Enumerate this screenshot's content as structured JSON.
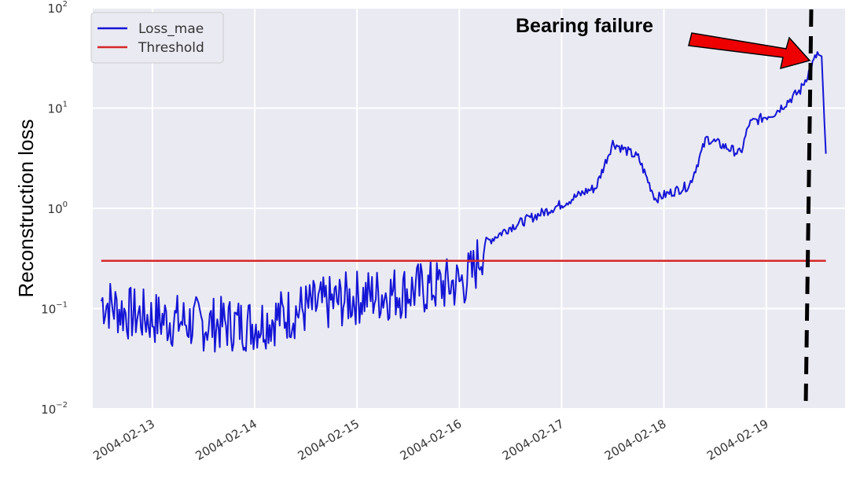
{
  "chart_data": {
    "type": "line",
    "title": "",
    "xlabel": "",
    "ylabel": "Reconstruction loss",
    "yscale": "log",
    "ylim": [
      0.01,
      100
    ],
    "xlim": [
      "2004-02-12 10:00",
      "2004-02-19 18:30"
    ],
    "y_tick_labels": [
      {
        "base": "10",
        "exp": "−2",
        "value": 0.01
      },
      {
        "base": "10",
        "exp": "−1",
        "value": 0.1
      },
      {
        "base": "10",
        "exp": "0",
        "value": 1
      },
      {
        "base": "10",
        "exp": "1",
        "value": 10
      },
      {
        "base": "10",
        "exp": "2",
        "value": 100
      }
    ],
    "x_tick_labels": [
      "2004-02-13",
      "2004-02-14",
      "2004-02-15",
      "2004-02-16",
      "2004-02-17",
      "2004-02-18",
      "2004-02-19"
    ],
    "grid": true,
    "legend_position": "top-left",
    "series": [
      {
        "name": "Loss_mae",
        "color": "#1515d6",
        "x": [
          "2004-02-12 12:00",
          "2004-02-12 18:00",
          "2004-02-13 00:00",
          "2004-02-13 12:00",
          "2004-02-14 00:00",
          "2004-02-14 12:00",
          "2004-02-15 00:00",
          "2004-02-15 12:00",
          "2004-02-16 00:00",
          "2004-02-16 03:00",
          "2004-02-16 06:00",
          "2004-02-16 12:00",
          "2004-02-17 00:00",
          "2004-02-17 06:00",
          "2004-02-17 08:00",
          "2004-02-17 12:00",
          "2004-02-17 18:00",
          "2004-02-17 22:00",
          "2004-02-18 06:00",
          "2004-02-18 10:00",
          "2004-02-18 18:00",
          "2004-02-18 20:00",
          "2004-02-19 02:00",
          "2004-02-19 08:00",
          "2004-02-19 12:00",
          "2004-02-19 13:00",
          "2004-02-19 14:00"
        ],
        "values": [
          0.12,
          0.09,
          0.08,
          0.07,
          0.07,
          0.1,
          0.13,
          0.15,
          0.18,
          0.22,
          0.45,
          0.65,
          1.1,
          1.5,
          1.6,
          4.5,
          3.2,
          1.25,
          1.7,
          5.0,
          3.5,
          7.0,
          9.0,
          15.0,
          35.0,
          30.0,
          3.5
        ]
      },
      {
        "name": "Threshold",
        "color": "#d62728",
        "x": [
          "2004-02-12 12:00",
          "2004-02-19 14:00"
        ],
        "values": [
          0.3,
          0.3
        ]
      }
    ],
    "annotations": [
      {
        "text": "Bearing failure",
        "x": "2004-02-19 13:00"
      }
    ]
  }
}
